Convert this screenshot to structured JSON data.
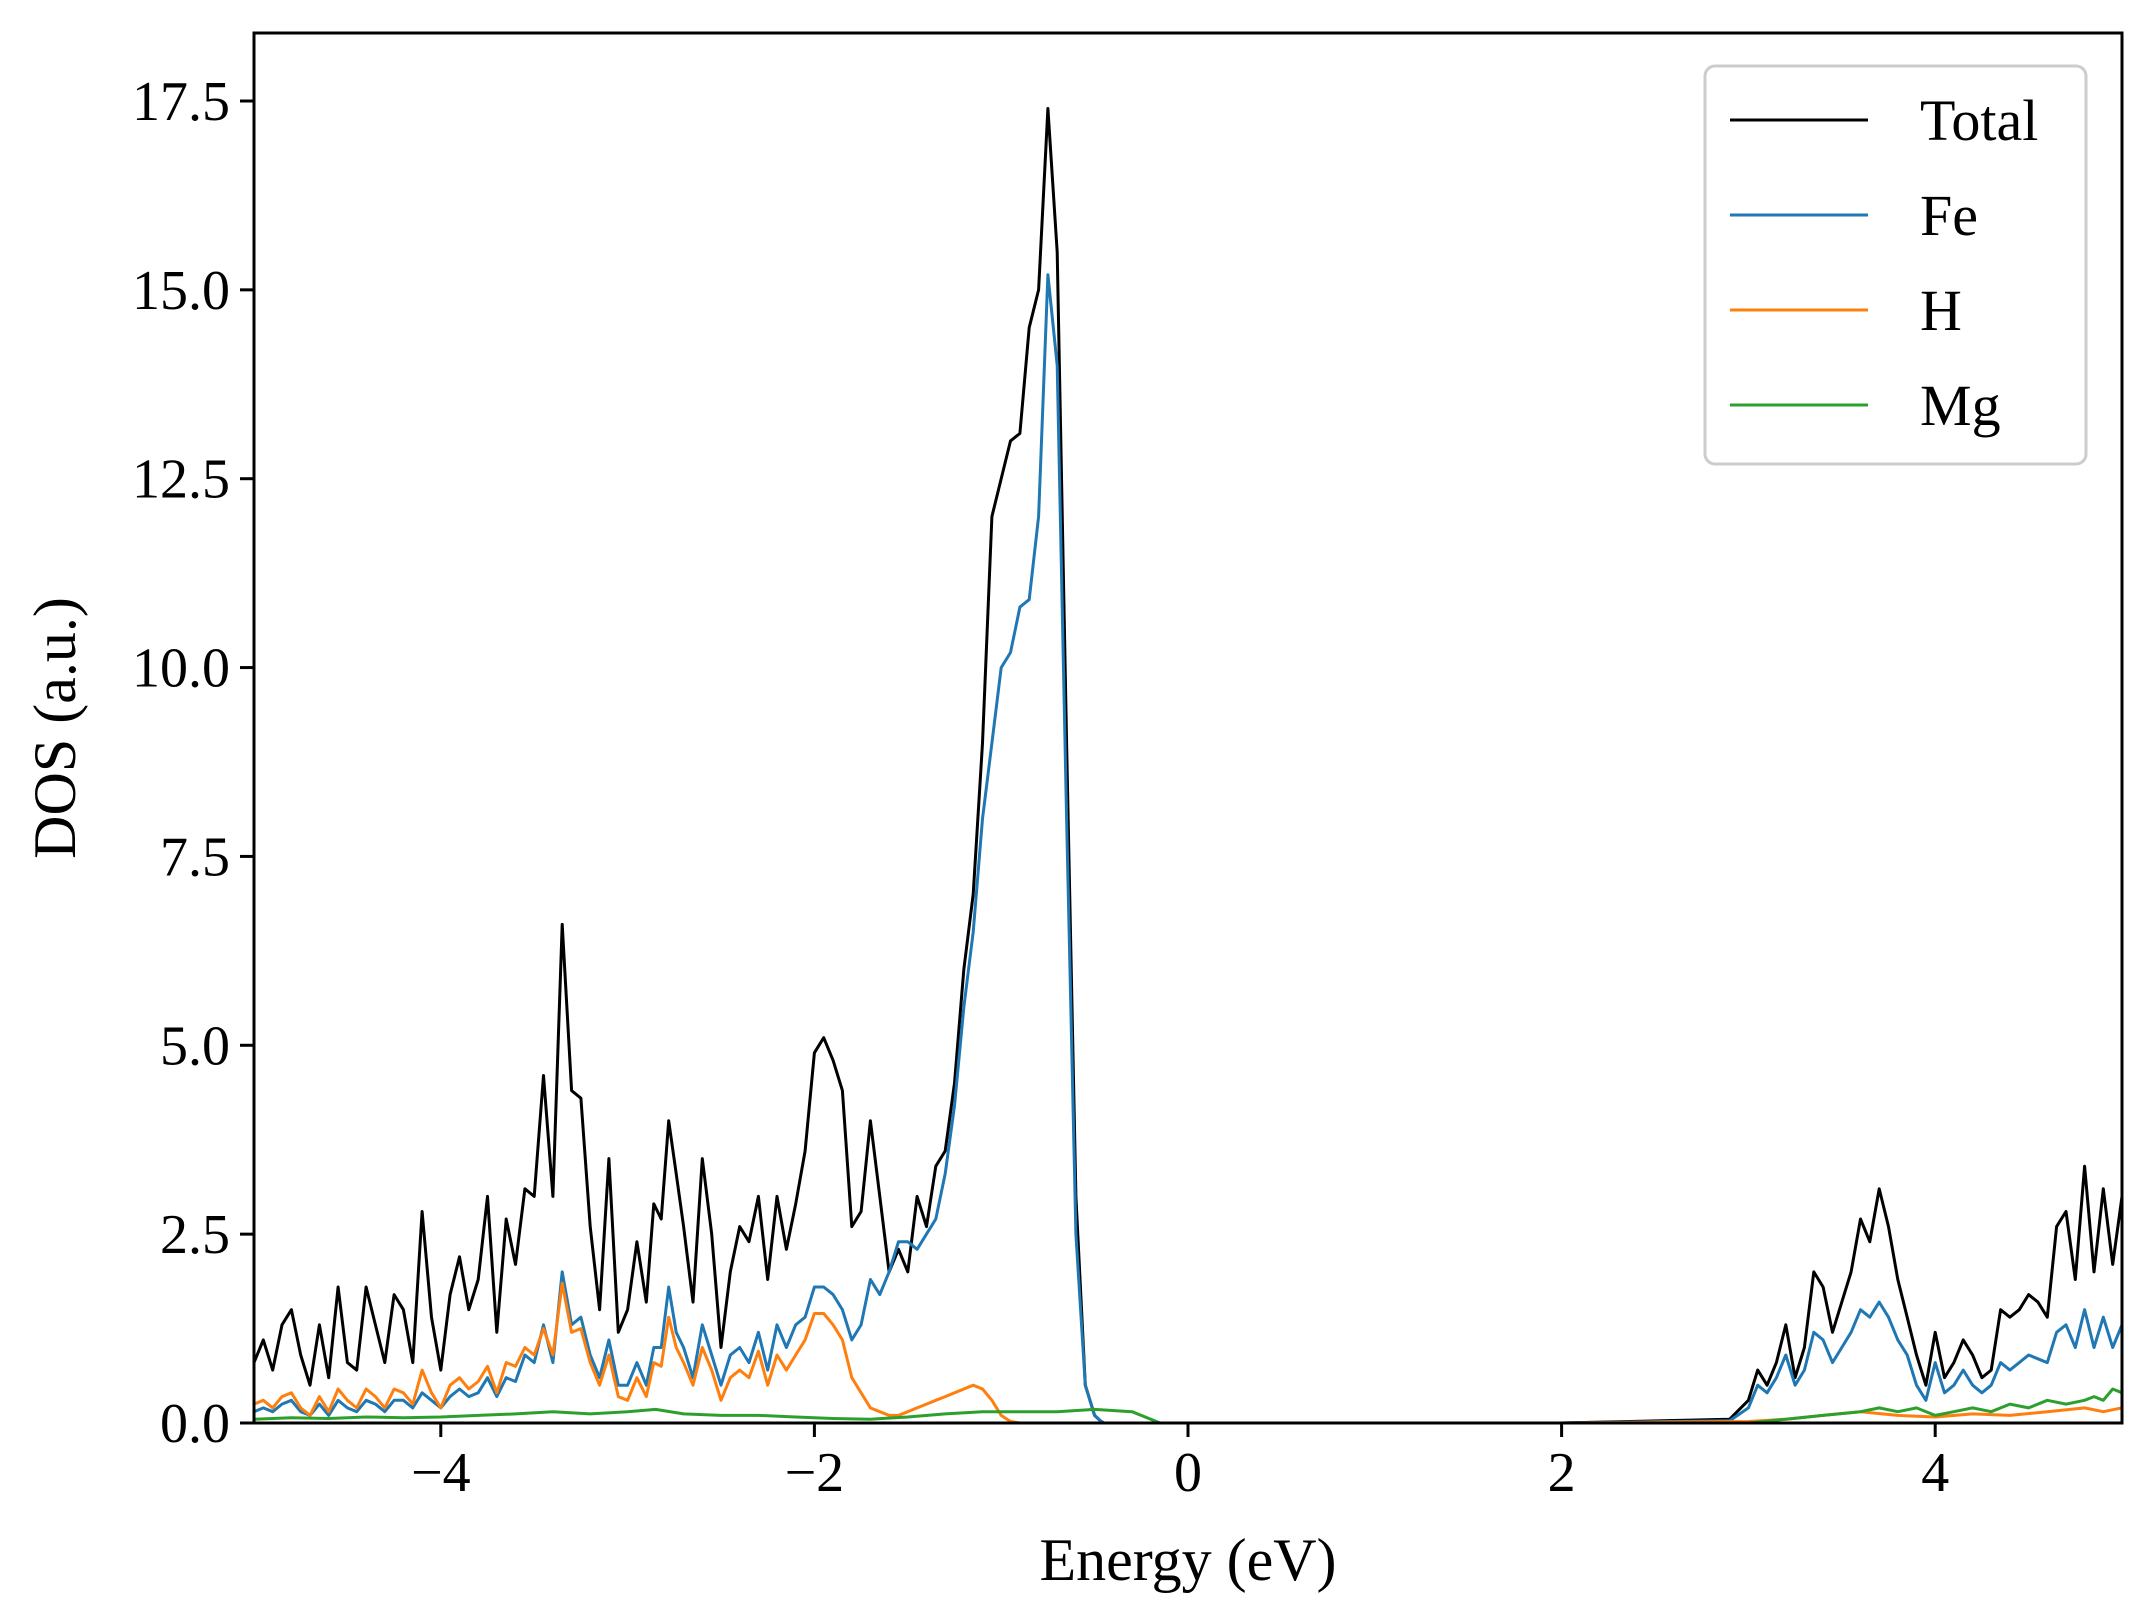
{
  "chart_data": {
    "type": "line",
    "title": "",
    "xlabel": "Energy (eV)",
    "ylabel": "DOS (a.u.)",
    "xlim": [
      -5,
      5
    ],
    "ylim": [
      0,
      18.4
    ],
    "x_ticks": [
      -4,
      -2,
      0,
      2,
      4
    ],
    "x_tick_labels": [
      "−4",
      "−2",
      "0",
      "2",
      "4"
    ],
    "y_ticks": [
      0,
      2.5,
      5,
      7.5,
      10,
      12.5,
      15,
      17.5
    ],
    "y_tick_labels": [
      "0.0",
      "2.5",
      "5.0",
      "7.5",
      "10.0",
      "12.5",
      "15.0",
      "17.5"
    ],
    "grid": false,
    "legend_position": "top-right",
    "series": [
      {
        "name": "Total",
        "color": "#000000",
        "x": [
          -5.0,
          -4.95,
          -4.9,
          -4.85,
          -4.8,
          -4.75,
          -4.7,
          -4.65,
          -4.6,
          -4.55,
          -4.5,
          -4.45,
          -4.4,
          -4.35,
          -4.3,
          -4.25,
          -4.2,
          -4.15,
          -4.1,
          -4.05,
          -4.0,
          -3.95,
          -3.9,
          -3.85,
          -3.8,
          -3.75,
          -3.7,
          -3.65,
          -3.6,
          -3.55,
          -3.5,
          -3.45,
          -3.4,
          -3.35,
          -3.3,
          -3.25,
          -3.2,
          -3.15,
          -3.1,
          -3.05,
          -3.0,
          -2.95,
          -2.9,
          -2.86,
          -2.82,
          -2.78,
          -2.74,
          -2.7,
          -2.65,
          -2.6,
          -2.55,
          -2.5,
          -2.45,
          -2.4,
          -2.35,
          -2.3,
          -2.25,
          -2.2,
          -2.15,
          -2.1,
          -2.05,
          -2.0,
          -1.95,
          -1.9,
          -1.85,
          -1.8,
          -1.75,
          -1.7,
          -1.65,
          -1.6,
          -1.55,
          -1.5,
          -1.45,
          -1.4,
          -1.35,
          -1.3,
          -1.25,
          -1.2,
          -1.15,
          -1.1,
          -1.05,
          -1.0,
          -0.95,
          -0.9,
          -0.85,
          -0.8,
          -0.75,
          -0.7,
          -0.65,
          -0.6,
          -0.55,
          -0.5,
          -0.47,
          -0.45,
          -0.42,
          -0.4,
          -0.37,
          -0.35,
          -0.33,
          -0.31,
          -0.29,
          -0.27,
          -0.25,
          -0.23,
          -0.21,
          -0.19,
          -0.17,
          -0.15,
          0.0,
          1.0,
          2.0,
          2.9,
          3.0,
          3.05,
          3.1,
          3.15,
          3.2,
          3.25,
          3.3,
          3.35,
          3.4,
          3.45,
          3.5,
          3.55,
          3.6,
          3.65,
          3.7,
          3.75,
          3.8,
          3.85,
          3.9,
          3.95,
          4.0,
          4.05,
          4.1,
          4.15,
          4.2,
          4.25,
          4.3,
          4.35,
          4.4,
          4.45,
          4.5,
          4.55,
          4.6,
          4.65,
          4.7,
          4.75,
          4.8,
          4.85,
          4.9,
          4.95,
          5.0
        ],
        "y": [
          0.8,
          1.1,
          0.7,
          1.3,
          1.5,
          0.9,
          0.5,
          1.3,
          0.6,
          1.8,
          0.8,
          0.7,
          1.8,
          1.3,
          0.8,
          1.7,
          1.5,
          0.8,
          2.8,
          1.4,
          0.7,
          1.7,
          2.2,
          1.5,
          1.9,
          3.0,
          1.2,
          2.7,
          2.1,
          3.1,
          3.0,
          4.6,
          3.0,
          6.6,
          4.4,
          4.3,
          2.6,
          1.5,
          3.5,
          1.2,
          1.5,
          2.4,
          1.6,
          2.9,
          2.7,
          4.0,
          3.3,
          2.6,
          1.6,
          3.5,
          2.5,
          1.0,
          2.0,
          2.6,
          2.4,
          3.0,
          1.9,
          3.0,
          2.3,
          2.9,
          3.6,
          4.9,
          5.1,
          4.8,
          4.4,
          2.6,
          2.8,
          4.0,
          3.0,
          2.0,
          2.3,
          2.0,
          3.0,
          2.6,
          3.4,
          3.6,
          4.5,
          6.0,
          7.0,
          9.0,
          12.0,
          12.5,
          13.0,
          13.1,
          14.5,
          15.0,
          17.4,
          15.5,
          9.0,
          3.0,
          0.5,
          0.1,
          0.03,
          0.0,
          0.0,
          0.0,
          0.0,
          0.0,
          0.0,
          0.0,
          0.0,
          0.0,
          0.0,
          0.0,
          0.0,
          0.0,
          0.0,
          0.0,
          0.0,
          0.0,
          0.0,
          0.05,
          0.3,
          0.7,
          0.5,
          0.8,
          1.3,
          0.6,
          1.0,
          2.0,
          1.8,
          1.2,
          1.6,
          2.0,
          2.7,
          2.4,
          3.1,
          2.6,
          1.9,
          1.4,
          0.9,
          0.5,
          1.2,
          0.6,
          0.8,
          1.1,
          0.9,
          0.6,
          0.7,
          1.5,
          1.4,
          1.5,
          1.7,
          1.6,
          1.4,
          2.6,
          2.8,
          1.9,
          3.4,
          2.0,
          3.1,
          2.1,
          3.0
        ]
      },
      {
        "name": "Fe",
        "color": "#1f77b4",
        "x": [
          -5.0,
          -4.95,
          -4.9,
          -4.85,
          -4.8,
          -4.75,
          -4.7,
          -4.65,
          -4.6,
          -4.55,
          -4.5,
          -4.45,
          -4.4,
          -4.35,
          -4.3,
          -4.25,
          -4.2,
          -4.15,
          -4.1,
          -4.05,
          -4.0,
          -3.95,
          -3.9,
          -3.85,
          -3.8,
          -3.75,
          -3.7,
          -3.65,
          -3.6,
          -3.55,
          -3.5,
          -3.45,
          -3.4,
          -3.35,
          -3.3,
          -3.25,
          -3.2,
          -3.15,
          -3.1,
          -3.05,
          -3.0,
          -2.95,
          -2.9,
          -2.86,
          -2.82,
          -2.78,
          -2.74,
          -2.7,
          -2.65,
          -2.6,
          -2.55,
          -2.5,
          -2.45,
          -2.4,
          -2.35,
          -2.3,
          -2.25,
          -2.2,
          -2.15,
          -2.1,
          -2.05,
          -2.0,
          -1.95,
          -1.9,
          -1.85,
          -1.8,
          -1.75,
          -1.7,
          -1.65,
          -1.6,
          -1.55,
          -1.5,
          -1.45,
          -1.4,
          -1.35,
          -1.3,
          -1.25,
          -1.2,
          -1.15,
          -1.1,
          -1.05,
          -1.0,
          -0.95,
          -0.9,
          -0.85,
          -0.8,
          -0.75,
          -0.7,
          -0.65,
          -0.6,
          -0.55,
          -0.5,
          -0.47,
          -0.45,
          -0.42,
          -0.4,
          -0.37,
          -0.35,
          -0.33,
          -0.31,
          -0.29,
          -0.27,
          -0.25,
          -0.23,
          -0.21,
          -0.19,
          -0.17,
          -0.15,
          0.0,
          1.0,
          2.0,
          2.9,
          3.0,
          3.05,
          3.1,
          3.15,
          3.2,
          3.25,
          3.3,
          3.35,
          3.4,
          3.45,
          3.5,
          3.55,
          3.6,
          3.65,
          3.7,
          3.75,
          3.8,
          3.85,
          3.9,
          3.95,
          4.0,
          4.05,
          4.1,
          4.15,
          4.2,
          4.25,
          4.3,
          4.35,
          4.4,
          4.45,
          4.5,
          4.55,
          4.6,
          4.65,
          4.7,
          4.75,
          4.8,
          4.85,
          4.9,
          4.95,
          5.0
        ],
        "y": [
          0.15,
          0.2,
          0.15,
          0.25,
          0.3,
          0.15,
          0.1,
          0.25,
          0.1,
          0.3,
          0.2,
          0.15,
          0.3,
          0.25,
          0.15,
          0.3,
          0.3,
          0.2,
          0.4,
          0.3,
          0.2,
          0.35,
          0.45,
          0.35,
          0.4,
          0.6,
          0.35,
          0.6,
          0.55,
          0.9,
          0.8,
          1.3,
          0.8,
          2.0,
          1.3,
          1.4,
          0.9,
          0.6,
          1.1,
          0.5,
          0.5,
          0.8,
          0.5,
          1.0,
          1.0,
          1.8,
          1.2,
          1.0,
          0.6,
          1.3,
          0.9,
          0.5,
          0.9,
          1.0,
          0.8,
          1.2,
          0.7,
          1.3,
          1.0,
          1.3,
          1.4,
          1.8,
          1.8,
          1.7,
          1.5,
          1.1,
          1.3,
          1.9,
          1.7,
          2.0,
          2.4,
          2.4,
          2.3,
          2.5,
          2.7,
          3.3,
          4.2,
          5.5,
          6.5,
          8.0,
          9.0,
          10.0,
          10.2,
          10.8,
          10.9,
          12.0,
          15.2,
          14.0,
          8.0,
          2.5,
          0.5,
          0.1,
          0.03,
          0.0,
          0.0,
          0.0,
          0.0,
          0.0,
          0.0,
          0.0,
          0.0,
          0.0,
          0.0,
          0.0,
          0.0,
          0.0,
          0.0,
          0.0,
          0.0,
          0.0,
          0.0,
          0.03,
          0.2,
          0.5,
          0.4,
          0.6,
          0.9,
          0.5,
          0.7,
          1.2,
          1.1,
          0.8,
          1.0,
          1.2,
          1.5,
          1.4,
          1.6,
          1.4,
          1.1,
          0.9,
          0.5,
          0.3,
          0.8,
          0.4,
          0.5,
          0.7,
          0.5,
          0.4,
          0.5,
          0.8,
          0.7,
          0.8,
          0.9,
          0.85,
          0.8,
          1.2,
          1.3,
          1.0,
          1.5,
          1.0,
          1.4,
          1.0,
          1.3
        ]
      },
      {
        "name": "H",
        "color": "#ff7f0e",
        "x": [
          -5.0,
          -4.95,
          -4.9,
          -4.85,
          -4.8,
          -4.75,
          -4.7,
          -4.65,
          -4.6,
          -4.55,
          -4.5,
          -4.45,
          -4.4,
          -4.35,
          -4.3,
          -4.25,
          -4.2,
          -4.15,
          -4.1,
          -4.05,
          -4.0,
          -3.95,
          -3.9,
          -3.85,
          -3.8,
          -3.75,
          -3.7,
          -3.65,
          -3.6,
          -3.55,
          -3.5,
          -3.45,
          -3.4,
          -3.35,
          -3.3,
          -3.25,
          -3.2,
          -3.15,
          -3.1,
          -3.05,
          -3.0,
          -2.95,
          -2.9,
          -2.86,
          -2.82,
          -2.78,
          -2.74,
          -2.7,
          -2.65,
          -2.6,
          -2.55,
          -2.5,
          -2.45,
          -2.4,
          -2.35,
          -2.3,
          -2.25,
          -2.2,
          -2.15,
          -2.1,
          -2.05,
          -2.0,
          -1.95,
          -1.9,
          -1.85,
          -1.8,
          -1.75,
          -1.7,
          -1.65,
          -1.6,
          -1.55,
          -1.5,
          -1.45,
          -1.4,
          -1.35,
          -1.3,
          -1.25,
          -1.2,
          -1.15,
          -1.1,
          -1.05,
          -1.0,
          -0.95,
          -0.9,
          -0.85,
          -0.8,
          -0.75,
          -0.7,
          -0.65,
          -0.6,
          -0.55,
          -0.5,
          -0.45,
          -0.4,
          -0.35,
          -0.3,
          -0.25,
          -0.2,
          -0.15,
          0.0,
          1.0,
          2.0,
          3.0,
          3.2,
          3.4,
          3.6,
          3.8,
          4.0,
          4.2,
          4.4,
          4.6,
          4.8,
          4.9,
          5.0
        ],
        "y": [
          0.25,
          0.3,
          0.2,
          0.35,
          0.4,
          0.2,
          0.1,
          0.35,
          0.15,
          0.45,
          0.3,
          0.2,
          0.45,
          0.35,
          0.2,
          0.45,
          0.4,
          0.25,
          0.7,
          0.4,
          0.2,
          0.5,
          0.6,
          0.45,
          0.55,
          0.75,
          0.4,
          0.8,
          0.75,
          1.0,
          0.9,
          1.25,
          0.9,
          1.85,
          1.2,
          1.25,
          0.8,
          0.5,
          0.9,
          0.35,
          0.3,
          0.6,
          0.35,
          0.8,
          0.75,
          1.4,
          1.0,
          0.8,
          0.5,
          1.0,
          0.7,
          0.3,
          0.6,
          0.7,
          0.6,
          0.95,
          0.5,
          0.9,
          0.7,
          0.9,
          1.1,
          1.45,
          1.45,
          1.3,
          1.1,
          0.6,
          0.4,
          0.2,
          0.15,
          0.1,
          0.1,
          0.15,
          0.2,
          0.25,
          0.3,
          0.35,
          0.4,
          0.45,
          0.5,
          0.45,
          0.3,
          0.1,
          0.02,
          0.0,
          0.0,
          0.0,
          0.0,
          0.0,
          0.0,
          0.0,
          0.0,
          0.0,
          0.0,
          0.0,
          0.0,
          0.0,
          0.0,
          0.0,
          0.0,
          0.0,
          0.0,
          0.0,
          0.02,
          0.05,
          0.1,
          0.15,
          0.1,
          0.08,
          0.12,
          0.1,
          0.15,
          0.2,
          0.15,
          0.2
        ]
      },
      {
        "name": "Mg",
        "color": "#2ca02c",
        "x": [
          -5.0,
          -4.8,
          -4.6,
          -4.4,
          -4.2,
          -4.0,
          -3.8,
          -3.6,
          -3.4,
          -3.2,
          -3.0,
          -2.85,
          -2.7,
          -2.5,
          -2.3,
          -2.1,
          -1.9,
          -1.7,
          -1.5,
          -1.3,
          -1.1,
          -0.9,
          -0.7,
          -0.5,
          -0.3,
          -0.2,
          -0.15,
          0.0,
          1.0,
          2.0,
          3.0,
          3.2,
          3.4,
          3.6,
          3.7,
          3.8,
          3.9,
          4.0,
          4.1,
          4.2,
          4.3,
          4.4,
          4.5,
          4.6,
          4.7,
          4.8,
          4.85,
          4.9,
          4.95,
          5.0
        ],
        "y": [
          0.05,
          0.07,
          0.06,
          0.08,
          0.07,
          0.08,
          0.1,
          0.12,
          0.15,
          0.12,
          0.15,
          0.18,
          0.12,
          0.1,
          0.1,
          0.08,
          0.06,
          0.05,
          0.08,
          0.12,
          0.15,
          0.15,
          0.15,
          0.18,
          0.15,
          0.05,
          0.0,
          0.0,
          0.0,
          0.0,
          0.0,
          0.05,
          0.1,
          0.15,
          0.2,
          0.15,
          0.2,
          0.1,
          0.15,
          0.2,
          0.15,
          0.25,
          0.2,
          0.3,
          0.25,
          0.3,
          0.35,
          0.3,
          0.45,
          0.4
        ]
      }
    ]
  }
}
